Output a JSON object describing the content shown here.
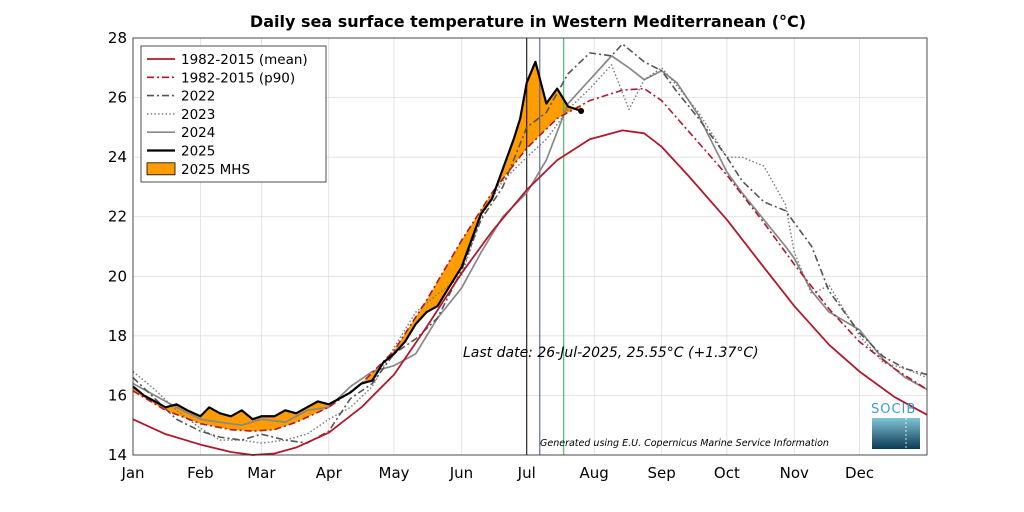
{
  "chart_data": {
    "type": "line",
    "title": "Daily sea surface temperature in Western Mediterranean (°C)",
    "xlabel": "",
    "ylabel": "",
    "ylim": [
      14,
      28
    ],
    "yticks": [
      14,
      16,
      18,
      20,
      22,
      24,
      26,
      28
    ],
    "xlim": [
      0,
      365
    ],
    "x_ticks": [
      {
        "label": "Jan",
        "day": 0
      },
      {
        "label": "Feb",
        "day": 31
      },
      {
        "label": "Mar",
        "day": 59
      },
      {
        "label": "Apr",
        "day": 90
      },
      {
        "label": "May",
        "day": 120
      },
      {
        "label": "Jun",
        "day": 151
      },
      {
        "label": "Jul",
        "day": 181
      },
      {
        "label": "Aug",
        "day": 212
      },
      {
        "label": "Sep",
        "day": 243
      },
      {
        "label": "Oct",
        "day": 273
      },
      {
        "label": "Nov",
        "day": 304
      },
      {
        "label": "Dec",
        "day": 334
      }
    ],
    "grid": true,
    "legend_position": "top-left",
    "annotation": "Last date: 26-Jul-2025, 25.55°C (+1.37°C)",
    "credit": "Generated using E.U. Copernicus Marine Service Information",
    "logo": "SOCIB",
    "vlines": [
      {
        "day": 181,
        "color": "#000000"
      },
      {
        "day": 187,
        "color": "#3a56a8"
      },
      {
        "day": 198,
        "color": "#27b04a"
      }
    ],
    "series": [
      {
        "name": "1982-2015 (mean)",
        "color": "#b2182b",
        "style": "solid",
        "width": 1.8,
        "x": [
          0,
          15,
          31,
          45,
          55,
          65,
          75,
          90,
          105,
          120,
          135,
          151,
          165,
          181,
          195,
          210,
          225,
          235,
          243,
          255,
          273,
          290,
          304,
          320,
          334,
          350,
          365
        ],
        "y": [
          15.2,
          14.7,
          14.35,
          14.1,
          14.0,
          14.05,
          14.25,
          14.75,
          15.6,
          16.7,
          18.3,
          20.1,
          21.5,
          22.9,
          23.9,
          24.6,
          24.9,
          24.8,
          24.35,
          23.4,
          21.9,
          20.3,
          19.0,
          17.7,
          16.8,
          15.95,
          15.35
        ]
      },
      {
        "name": "1982-2015 (p90)",
        "color": "#b2182b",
        "style": "dashdot",
        "width": 1.6,
        "x": [
          0,
          15,
          31,
          45,
          55,
          65,
          75,
          90,
          105,
          120,
          135,
          151,
          165,
          181,
          195,
          210,
          225,
          235,
          243,
          255,
          273,
          290,
          304,
          320,
          334,
          350,
          365
        ],
        "y": [
          16.15,
          15.5,
          15.05,
          14.85,
          14.8,
          14.85,
          15.1,
          15.6,
          16.4,
          17.5,
          19.2,
          21.2,
          22.8,
          24.3,
          25.3,
          25.9,
          26.25,
          26.3,
          25.9,
          24.9,
          23.4,
          21.8,
          20.4,
          18.9,
          17.8,
          16.9,
          16.2
        ]
      },
      {
        "name": "2022",
        "color": "#555555",
        "style": "dashdot",
        "width": 1.6,
        "x": [
          0,
          10,
          20,
          31,
          40,
          50,
          59,
          70,
          80,
          90,
          100,
          110,
          120,
          130,
          140,
          151,
          160,
          170,
          181,
          190,
          200,
          210,
          220,
          225,
          235,
          243,
          250,
          260,
          273,
          280,
          290,
          300,
          304,
          312,
          320,
          334,
          345,
          355,
          365
        ],
        "y": [
          16.6,
          15.9,
          15.2,
          14.8,
          14.6,
          14.5,
          14.7,
          14.5,
          14.4,
          14.8,
          15.9,
          16.4,
          17.4,
          17.9,
          18.6,
          20.2,
          21.9,
          23.0,
          25.0,
          25.5,
          26.8,
          27.5,
          27.4,
          27.8,
          27.2,
          26.9,
          26.2,
          25.3,
          24.0,
          23.2,
          22.5,
          22.2,
          21.8,
          21.0,
          19.5,
          18.1,
          17.3,
          16.9,
          16.7
        ]
      },
      {
        "name": "2023",
        "color": "#777777",
        "style": "dotted",
        "width": 1.4,
        "x": [
          0,
          10,
          20,
          31,
          40,
          50,
          59,
          70,
          80,
          90,
          100,
          110,
          120,
          130,
          140,
          151,
          160,
          170,
          181,
          190,
          200,
          210,
          220,
          228,
          235,
          243,
          250,
          260,
          273,
          280,
          290,
          300,
          304,
          312,
          320,
          334,
          345,
          355,
          365
        ],
        "y": [
          16.8,
          16.2,
          15.5,
          14.9,
          14.5,
          14.5,
          14.4,
          14.5,
          14.7,
          15.2,
          15.6,
          16.3,
          17.6,
          18.8,
          19.4,
          20.0,
          22.0,
          23.2,
          24.0,
          24.6,
          25.6,
          26.3,
          27.1,
          25.6,
          26.6,
          27.0,
          26.4,
          25.5,
          24.0,
          24.0,
          23.7,
          22.4,
          20.8,
          19.4,
          19.7,
          18.0,
          17.1,
          16.9,
          16.6
        ]
      },
      {
        "name": "2024",
        "color": "#888888",
        "style": "solid",
        "width": 1.7,
        "x": [
          0,
          10,
          20,
          31,
          40,
          50,
          59,
          70,
          80,
          90,
          100,
          110,
          120,
          130,
          140,
          151,
          160,
          170,
          181,
          190,
          200,
          210,
          220,
          228,
          235,
          243,
          250,
          260,
          273,
          280,
          290,
          300,
          304,
          312,
          320,
          334,
          345,
          355,
          365
        ],
        "y": [
          16.4,
          16.0,
          15.6,
          15.2,
          15.1,
          15.0,
          15.2,
          15.1,
          15.5,
          15.6,
          16.3,
          16.8,
          17.0,
          17.4,
          18.6,
          19.6,
          20.8,
          22.0,
          22.8,
          23.9,
          25.8,
          26.6,
          27.4,
          27.0,
          26.6,
          26.9,
          26.5,
          25.4,
          23.5,
          22.8,
          21.9,
          21.0,
          20.6,
          19.5,
          18.8,
          18.2,
          17.2,
          16.6,
          16.2
        ]
      },
      {
        "name": "2025",
        "color": "#000000",
        "style": "solid",
        "width": 2.2,
        "x": [
          0,
          5,
          10,
          15,
          20,
          25,
          31,
          35,
          40,
          45,
          50,
          55,
          59,
          65,
          70,
          75,
          80,
          85,
          90,
          95,
          100,
          105,
          110,
          115,
          120,
          125,
          130,
          135,
          140,
          145,
          151,
          155,
          160,
          165,
          170,
          175,
          178,
          181,
          185,
          190,
          195,
          200,
          206
        ],
        "y": [
          16.3,
          16.0,
          15.8,
          15.6,
          15.7,
          15.5,
          15.3,
          15.6,
          15.4,
          15.3,
          15.5,
          15.2,
          15.3,
          15.3,
          15.5,
          15.4,
          15.6,
          15.8,
          15.7,
          15.9,
          16.1,
          16.4,
          16.5,
          17.1,
          17.4,
          17.8,
          18.4,
          18.8,
          19.0,
          19.6,
          20.3,
          21.1,
          22.1,
          22.6,
          23.6,
          24.6,
          25.3,
          26.5,
          27.2,
          25.8,
          26.3,
          25.7,
          25.55
        ]
      }
    ],
    "mhs": {
      "name": "2025 MHS",
      "color": "#ff9c00",
      "between": [
        "2025",
        "1982-2015 (p90)"
      ]
    },
    "last_point": {
      "day": 206,
      "value": 25.55
    }
  }
}
